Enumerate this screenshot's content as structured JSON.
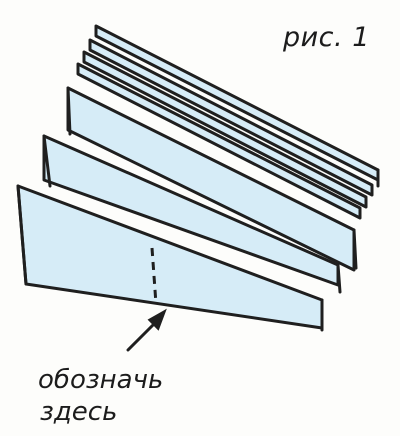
{
  "figure_label": "рис. 1",
  "caption": {
    "line1": "обозначь",
    "line2": "здесь"
  },
  "colors": {
    "paper_fill": "#d6ecf7",
    "outline": "#1f1f1f",
    "background": "#fdfdfb"
  }
}
